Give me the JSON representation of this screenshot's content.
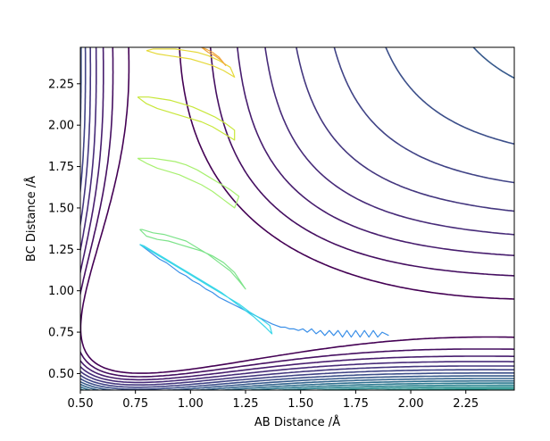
{
  "chart_data": {
    "type": "contour",
    "title": "",
    "xlabel": "AB Distance /Å",
    "ylabel": "BC Distance /Å",
    "xlim": [
      0.5,
      2.47
    ],
    "ylim": [
      0.4,
      2.47
    ],
    "xticks": [
      "0.50",
      "0.75",
      "1.00",
      "1.25",
      "1.50",
      "1.75",
      "2.00",
      "2.25"
    ],
    "yticks": [
      "0.50",
      "0.75",
      "1.00",
      "1.25",
      "1.50",
      "1.75",
      "2.00",
      "2.25"
    ],
    "colormap": "viridis",
    "grid": false,
    "potential": {
      "D": 1.0,
      "alpha": 2.0,
      "r0": 0.74,
      "contour_levels": [
        -0.85,
        -0.75,
        -0.65,
        -0.55,
        -0.45,
        -0.35,
        -0.25,
        -0.15,
        -0.05,
        0.05,
        0.15,
        0.25,
        0.35,
        0.45,
        0.55,
        0.65,
        0.8,
        1.0,
        1.3,
        1.7,
        2.2,
        2.8,
        3.5,
        4.3,
        5.2,
        6.2
      ]
    },
    "series": [
      {
        "x": [
          1.9,
          1.87,
          1.85,
          1.83,
          1.81,
          1.79,
          1.77,
          1.75,
          1.73,
          1.71,
          1.69,
          1.67,
          1.65,
          1.63,
          1.61,
          1.59,
          1.57,
          1.55,
          1.53,
          1.51,
          1.49,
          1.47,
          1.45,
          1.43,
          1.41,
          1.39,
          1.37,
          1.34,
          1.31,
          1.28,
          1.25,
          1.22,
          1.19,
          1.16,
          1.13,
          1.1,
          1.07,
          1.04,
          1.01,
          0.98,
          0.95,
          0.92,
          0.89,
          0.86,
          0.83,
          0.8,
          0.77
        ],
        "y": [
          0.73,
          0.75,
          0.72,
          0.76,
          0.72,
          0.76,
          0.72,
          0.76,
          0.72,
          0.76,
          0.72,
          0.76,
          0.73,
          0.76,
          0.73,
          0.76,
          0.74,
          0.77,
          0.75,
          0.77,
          0.76,
          0.77,
          0.77,
          0.78,
          0.78,
          0.79,
          0.8,
          0.82,
          0.84,
          0.86,
          0.88,
          0.9,
          0.92,
          0.94,
          0.96,
          0.99,
          1.01,
          1.04,
          1.06,
          1.09,
          1.11,
          1.14,
          1.17,
          1.19,
          1.22,
          1.25,
          1.28
        ],
        "color": "#3a8fe8"
      },
      {
        "x": [
          0.77,
          0.82,
          0.87,
          0.92,
          0.97,
          1.02,
          1.07,
          1.12,
          1.17,
          1.22,
          1.27,
          1.32,
          1.36,
          1.37,
          1.34,
          1.29,
          1.24,
          1.19,
          1.14,
          1.09,
          1.04,
          0.99,
          0.94,
          0.89,
          0.84,
          0.79,
          0.77
        ],
        "y": [
          1.28,
          1.24,
          1.2,
          1.16,
          1.12,
          1.08,
          1.04,
          1.0,
          0.96,
          0.92,
          0.87,
          0.83,
          0.79,
          0.74,
          0.78,
          0.84,
          0.89,
          0.94,
          0.99,
          1.03,
          1.07,
          1.11,
          1.15,
          1.19,
          1.23,
          1.27,
          1.28
        ],
        "color": "#3ad6e8"
      },
      {
        "x": [
          0.77,
          0.8,
          0.85,
          0.9,
          0.95,
          1.0,
          1.05,
          1.1,
          1.15,
          1.2,
          1.23,
          1.25,
          1.22,
          1.18,
          1.13,
          1.08,
          1.03,
          0.98,
          0.93,
          0.88,
          0.83,
          0.78,
          0.77
        ],
        "y": [
          1.37,
          1.33,
          1.31,
          1.3,
          1.28,
          1.26,
          1.24,
          1.21,
          1.17,
          1.11,
          1.05,
          1.01,
          1.06,
          1.12,
          1.17,
          1.22,
          1.26,
          1.3,
          1.32,
          1.34,
          1.35,
          1.37,
          1.37
        ],
        "color": "#7de38a"
      },
      {
        "x": [
          0.76,
          0.8,
          0.85,
          0.9,
          0.95,
          1.0,
          1.05,
          1.1,
          1.15,
          1.2,
          1.22,
          1.18,
          1.13,
          1.08,
          1.03,
          0.98,
          0.93,
          0.88,
          0.83,
          0.79,
          0.76
        ],
        "y": [
          1.8,
          1.77,
          1.74,
          1.72,
          1.7,
          1.67,
          1.64,
          1.6,
          1.55,
          1.5,
          1.57,
          1.61,
          1.65,
          1.69,
          1.73,
          1.76,
          1.78,
          1.79,
          1.8,
          1.8,
          1.8
        ],
        "color": "#a8f070"
      },
      {
        "x": [
          0.76,
          0.8,
          0.85,
          0.9,
          0.95,
          1.0,
          1.05,
          1.1,
          1.15,
          1.2,
          1.2,
          1.16,
          1.11,
          1.06,
          1.01,
          0.96,
          0.91,
          0.86,
          0.81,
          0.77,
          0.76
        ],
        "y": [
          2.17,
          2.13,
          2.1,
          2.08,
          2.06,
          2.04,
          2.02,
          1.99,
          1.95,
          1.91,
          1.97,
          2.01,
          2.05,
          2.08,
          2.11,
          2.13,
          2.15,
          2.16,
          2.17,
          2.17,
          2.17
        ],
        "color": "#c8e73a"
      },
      {
        "x": [
          0.8,
          0.85,
          0.9,
          0.95,
          1.0,
          1.05,
          1.1,
          1.15,
          1.2,
          1.18,
          1.13,
          1.08,
          1.03,
          0.98,
          0.93,
          0.88,
          0.83,
          0.8
        ],
        "y": [
          2.45,
          2.43,
          2.42,
          2.41,
          2.4,
          2.38,
          2.36,
          2.33,
          2.29,
          2.35,
          2.39,
          2.42,
          2.44,
          2.45,
          2.46,
          2.46,
          2.46,
          2.45
        ],
        "color": "#e5d93a"
      },
      {
        "x": [
          1.05,
          1.08,
          1.11,
          1.14,
          1.16,
          1.13,
          1.1,
          1.07,
          1.05
        ],
        "y": [
          2.47,
          2.44,
          2.42,
          2.39,
          2.36,
          2.41,
          2.44,
          2.46,
          2.47
        ],
        "color": "#f0a53a"
      }
    ]
  }
}
